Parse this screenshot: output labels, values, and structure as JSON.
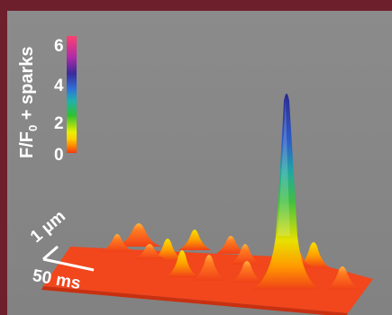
{
  "colorbar": {
    "title_main": "F/F",
    "title_sub": "0",
    "title_rest": " + sparks",
    "ticks": [
      "6",
      "4",
      "2",
      "0"
    ]
  },
  "scale": {
    "space": "1 µm",
    "time": "50 ms"
  }
}
